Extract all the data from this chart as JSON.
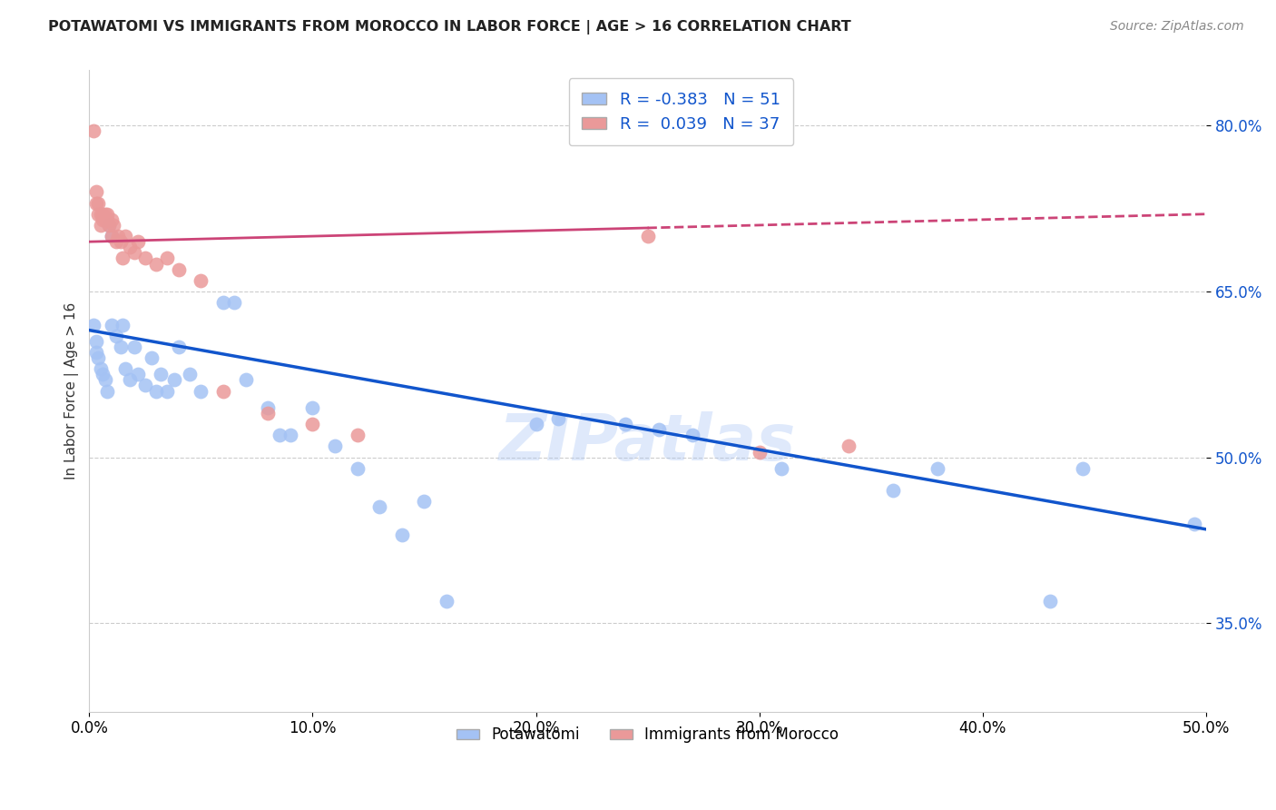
{
  "title": "POTAWATOMI VS IMMIGRANTS FROM MOROCCO IN LABOR FORCE | AGE > 16 CORRELATION CHART",
  "source_text": "Source: ZipAtlas.com",
  "ylabel": "In Labor Force | Age > 16",
  "xlim": [
    0.0,
    0.5
  ],
  "ylim": [
    0.27,
    0.85
  ],
  "yticks": [
    0.35,
    0.5,
    0.65,
    0.8
  ],
  "ytick_labels": [
    "35.0%",
    "50.0%",
    "65.0%",
    "80.0%"
  ],
  "xticks": [
    0.0,
    0.1,
    0.2,
    0.3,
    0.4,
    0.5
  ],
  "xtick_labels": [
    "0.0%",
    "10.0%",
    "20.0%",
    "30.0%",
    "40.0%",
    "50.0%"
  ],
  "blue_R": "-0.383",
  "blue_N": "51",
  "pink_R": "0.039",
  "pink_N": "37",
  "blue_color": "#a4c2f4",
  "pink_color": "#ea9999",
  "blue_line_color": "#1155cc",
  "pink_line_color": "#cc4477",
  "watermark": "ZIPatlas",
  "blue_line_x0": 0.0,
  "blue_line_y0": 0.615,
  "blue_line_x1": 0.5,
  "blue_line_y1": 0.435,
  "pink_line_x0": 0.0,
  "pink_line_y0": 0.695,
  "pink_line_x1": 0.5,
  "pink_line_y1": 0.72,
  "blue_points_x": [
    0.002,
    0.003,
    0.003,
    0.004,
    0.005,
    0.006,
    0.007,
    0.008,
    0.009,
    0.01,
    0.01,
    0.012,
    0.014,
    0.015,
    0.016,
    0.018,
    0.02,
    0.022,
    0.025,
    0.028,
    0.03,
    0.032,
    0.035,
    0.038,
    0.04,
    0.045,
    0.05,
    0.06,
    0.065,
    0.07,
    0.08,
    0.085,
    0.09,
    0.1,
    0.11,
    0.12,
    0.13,
    0.14,
    0.15,
    0.16,
    0.2,
    0.21,
    0.24,
    0.255,
    0.27,
    0.31,
    0.36,
    0.38,
    0.43,
    0.445,
    0.495
  ],
  "blue_points_y": [
    0.62,
    0.605,
    0.595,
    0.59,
    0.58,
    0.575,
    0.57,
    0.56,
    0.71,
    0.7,
    0.62,
    0.61,
    0.6,
    0.62,
    0.58,
    0.57,
    0.6,
    0.575,
    0.565,
    0.59,
    0.56,
    0.575,
    0.56,
    0.57,
    0.6,
    0.575,
    0.56,
    0.64,
    0.64,
    0.57,
    0.545,
    0.52,
    0.52,
    0.545,
    0.51,
    0.49,
    0.455,
    0.43,
    0.46,
    0.37,
    0.53,
    0.535,
    0.53,
    0.525,
    0.52,
    0.49,
    0.47,
    0.49,
    0.37,
    0.49,
    0.44
  ],
  "pink_points_x": [
    0.002,
    0.003,
    0.003,
    0.004,
    0.004,
    0.005,
    0.005,
    0.006,
    0.006,
    0.007,
    0.007,
    0.008,
    0.008,
    0.009,
    0.01,
    0.01,
    0.011,
    0.012,
    0.013,
    0.014,
    0.015,
    0.016,
    0.018,
    0.02,
    0.022,
    0.025,
    0.03,
    0.035,
    0.04,
    0.05,
    0.06,
    0.08,
    0.1,
    0.12,
    0.25,
    0.3,
    0.34
  ],
  "pink_points_y": [
    0.795,
    0.74,
    0.73,
    0.73,
    0.72,
    0.72,
    0.71,
    0.72,
    0.715,
    0.72,
    0.715,
    0.715,
    0.72,
    0.71,
    0.715,
    0.7,
    0.71,
    0.695,
    0.7,
    0.695,
    0.68,
    0.7,
    0.69,
    0.685,
    0.695,
    0.68,
    0.675,
    0.68,
    0.67,
    0.66,
    0.56,
    0.54,
    0.53,
    0.52,
    0.7,
    0.505,
    0.51
  ]
}
